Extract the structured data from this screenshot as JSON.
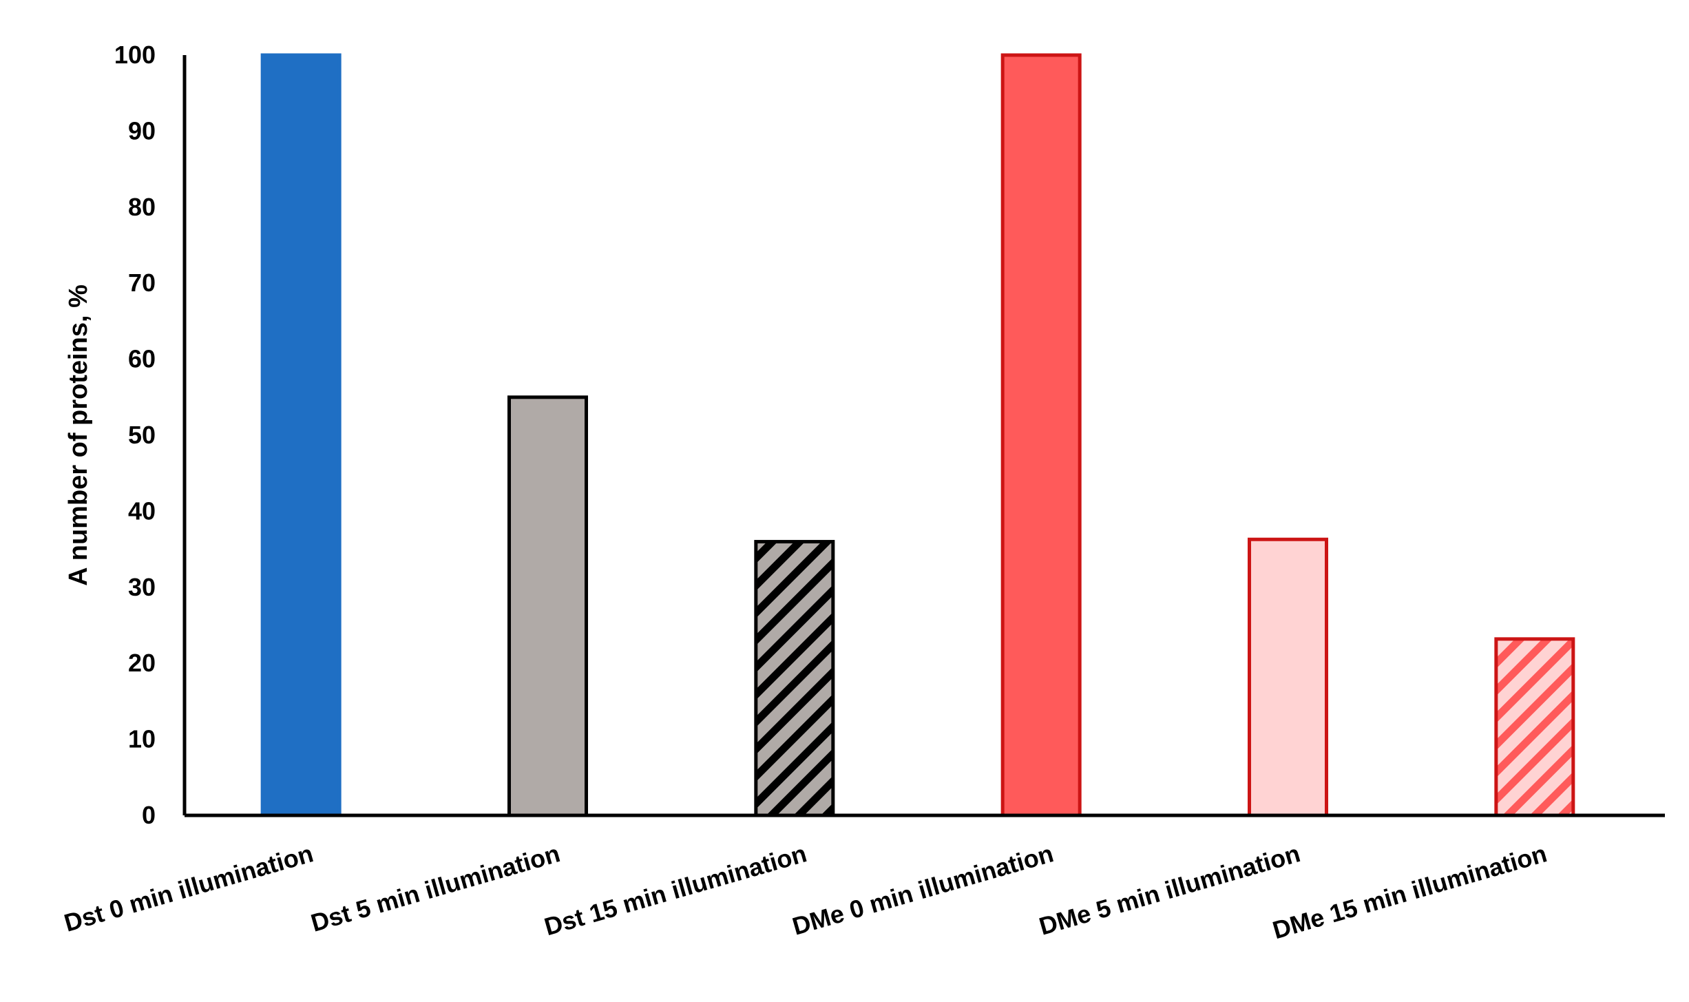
{
  "chart_data": {
    "type": "bar",
    "title": "",
    "xlabel": "",
    "ylabel": "A number of proteins, %",
    "ylim": [
      0,
      100
    ],
    "yticks": [
      0,
      10,
      20,
      30,
      40,
      50,
      60,
      70,
      80,
      90,
      100
    ],
    "grid": false,
    "legend": "none",
    "categories": [
      "Dst 0 min illumination",
      "Dst 5 min illumination",
      "Dst 15 min illumination",
      "DMe 0 min illumination",
      "DMe 5 min illumination",
      "DMe 15 min illumination"
    ],
    "values": [
      100,
      55,
      36,
      100,
      36.3,
      23.2
    ],
    "bars": [
      {
        "fill": "#1f6fc4",
        "stroke": "#1f6fc4",
        "hatch": false,
        "hatch_bg": "",
        "hatch_line": ""
      },
      {
        "fill": "#b0aaa7",
        "stroke": "#000000",
        "hatch": false,
        "hatch_bg": "",
        "hatch_line": ""
      },
      {
        "fill": "#b0aaa7",
        "stroke": "#000000",
        "hatch": true,
        "hatch_bg": "#b0aaa7",
        "hatch_line": "#000000"
      },
      {
        "fill": "#ff5a5a",
        "stroke": "#cc1414",
        "hatch": false,
        "hatch_bg": "",
        "hatch_line": ""
      },
      {
        "fill": "#ffd3d3",
        "stroke": "#cc1414",
        "hatch": false,
        "hatch_bg": "",
        "hatch_line": ""
      },
      {
        "fill": "#ffd3d3",
        "stroke": "#cc1414",
        "hatch": true,
        "hatch_bg": "#ffd3d3",
        "hatch_line": "#ff5a5a"
      }
    ]
  }
}
